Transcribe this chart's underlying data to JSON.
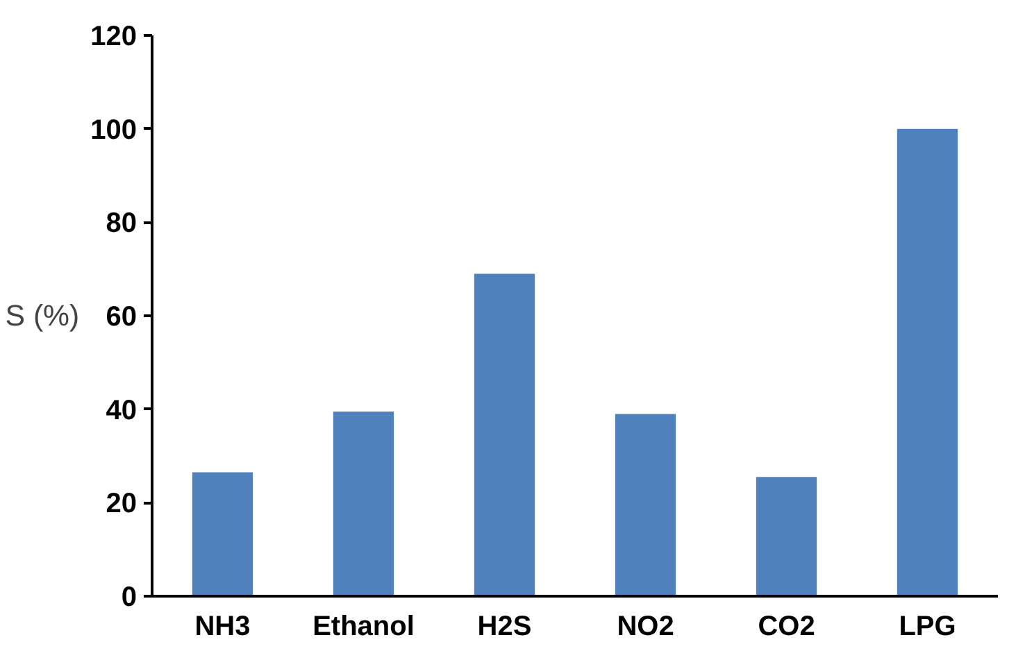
{
  "chart_data": {
    "type": "bar",
    "ylabel": "S (%)",
    "categories": [
      "NH3",
      "Ethanol",
      "H2S",
      "NO2",
      "CO2",
      "LPG"
    ],
    "values": [
      26.5,
      39.5,
      69,
      39,
      25.5,
      100
    ],
    "color": "#4f81bd",
    "ylim": [
      0,
      120
    ],
    "yticks": [
      0,
      20,
      40,
      60,
      80,
      100,
      120
    ],
    "grid": false
  }
}
